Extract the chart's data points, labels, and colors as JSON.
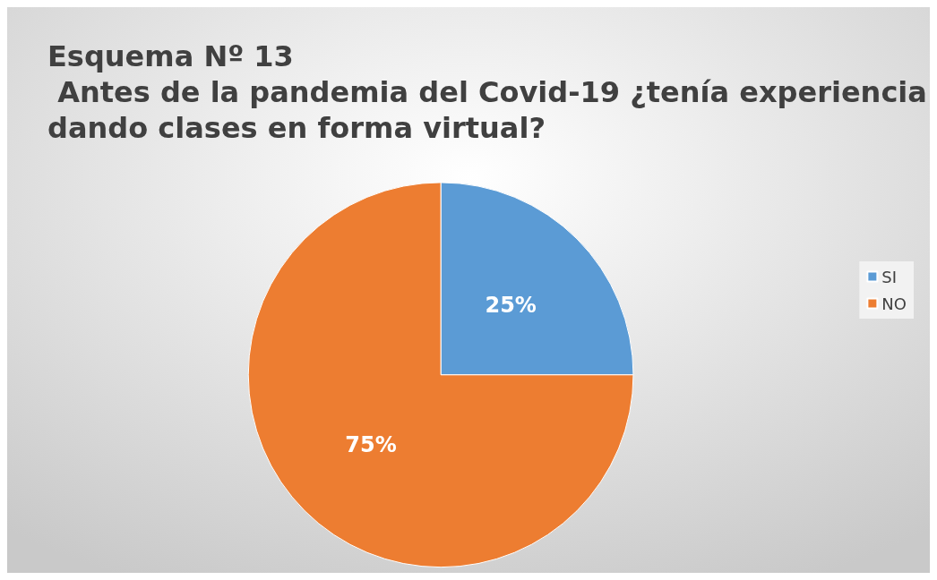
{
  "chart_data": {
    "type": "pie",
    "title": "Esquema Nº 13\n Antes de la pandemia del Covid-19 ¿tenía experiencia\ndando clases en forma virtual?",
    "categories": [
      "SI",
      "NO"
    ],
    "values": [
      25,
      75
    ],
    "colors": [
      "#5b9bd5",
      "#ed7d31"
    ],
    "value_labels": [
      "25%",
      "75%"
    ],
    "legend": "right"
  }
}
